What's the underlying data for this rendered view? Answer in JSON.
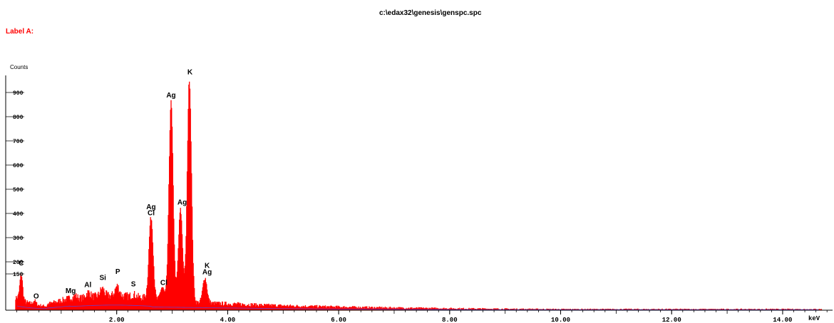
{
  "window": {
    "file_path": "c:\\edax32\\genesis\\genspc.spc",
    "label": "Label A:"
  },
  "colors": {
    "spectrum": "#ff0000",
    "background_trace": "#6a3bc8",
    "axis": "#000000"
  },
  "chart_data": {
    "type": "area",
    "ylabel": "Counts",
    "xlabel": "keV",
    "xlim": [
      0.0,
      14.9
    ],
    "ylim": [
      0,
      1000
    ],
    "x_ticks": [
      {
        "value": 2,
        "label": "2.00"
      },
      {
        "value": 4,
        "label": "4.00"
      },
      {
        "value": 6,
        "label": "6.00"
      },
      {
        "value": 8,
        "label": "8.00"
      },
      {
        "value": 10,
        "label": "10.00"
      },
      {
        "value": 12,
        "label": "12.00"
      },
      {
        "value": 14,
        "label": "14.00"
      }
    ],
    "y_ticks": [
      {
        "value": 150,
        "label": "150"
      },
      {
        "value": 200,
        "label": "200"
      },
      {
        "value": 300,
        "label": "300"
      },
      {
        "value": 400,
        "label": "400"
      },
      {
        "value": 500,
        "label": "500"
      },
      {
        "value": 600,
        "label": "600"
      },
      {
        "value": 700,
        "label": "700"
      },
      {
        "value": 800,
        "label": "800"
      },
      {
        "value": 900,
        "label": "900"
      }
    ],
    "peaks": [
      {
        "element": "C",
        "energy": 0.28,
        "counts": 150
      },
      {
        "element": "O",
        "energy": 0.52,
        "counts": 40
      },
      {
        "element": "Mg",
        "energy": 1.25,
        "counts": 60
      },
      {
        "element": "Al",
        "energy": 1.49,
        "counts": 75
      },
      {
        "element": "Si",
        "energy": 1.74,
        "counts": 90
      },
      {
        "element": "P",
        "energy": 2.01,
        "counts": 100
      },
      {
        "element": "S",
        "energy": 2.31,
        "counts": 65
      },
      {
        "element": "Ag\nCl",
        "energy": 2.62,
        "counts": 385
      },
      {
        "element": "Cl",
        "energy": 2.82,
        "counts": 95
      },
      {
        "element": "Ag",
        "energy": 2.98,
        "counts": 860
      },
      {
        "element": "Ag",
        "energy": 3.15,
        "counts": 415
      },
      {
        "element": "K",
        "energy": 3.31,
        "counts": 955
      },
      {
        "element": "K\nAg",
        "energy": 3.59,
        "counts": 135
      }
    ],
    "peak_labels": [
      {
        "text": "C",
        "energy": 0.28,
        "counts": 185
      },
      {
        "text": "O",
        "energy": 0.55,
        "counts": 48
      },
      {
        "text": "Mg",
        "energy": 1.17,
        "counts": 70
      },
      {
        "text": "Al",
        "energy": 1.48,
        "counts": 95
      },
      {
        "text": "Si",
        "energy": 1.75,
        "counts": 125
      },
      {
        "text": "P",
        "energy": 2.02,
        "counts": 150
      },
      {
        "text": "S",
        "energy": 2.3,
        "counts": 98
      },
      {
        "text": "Ag",
        "energy": 2.62,
        "counts": 418
      },
      {
        "text": "Cl",
        "energy": 2.62,
        "counts": 393
      },
      {
        "text": "Cl",
        "energy": 2.85,
        "counts": 105
      },
      {
        "text": "Ag",
        "energy": 2.98,
        "counts": 880
      },
      {
        "text": "Ag",
        "energy": 3.18,
        "counts": 437
      },
      {
        "text": "K",
        "energy": 3.32,
        "counts": 975
      },
      {
        "text": "K",
        "energy": 3.63,
        "counts": 175
      },
      {
        "text": "Ag",
        "energy": 3.63,
        "counts": 148
      }
    ]
  }
}
